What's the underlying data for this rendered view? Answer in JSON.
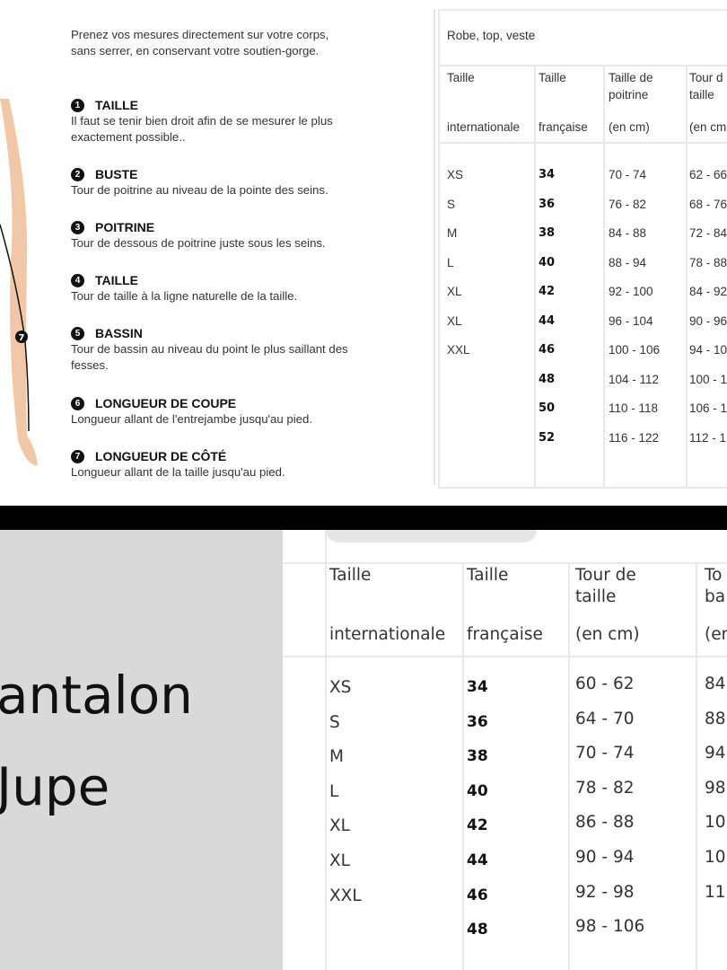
{
  "guide": {
    "intro": [
      "Prenez vos mesures directement sur votre corps,",
      "sans serrer, en conservant votre soutien-gorge."
    ],
    "figure_marker": "7",
    "items": [
      {
        "num": "1",
        "title": "TAILLE",
        "text": [
          "Il faut se tenir bien droit afin de se mesurer le plus",
          "exactement possible.."
        ]
      },
      {
        "num": "2",
        "title": "BUSTE",
        "text": [
          "Tour de poitrine au niveau de la pointe des seins."
        ]
      },
      {
        "num": "3",
        "title": "POITRINE",
        "text": [
          "Tour de dessous de poitrine juste sous les seins."
        ]
      },
      {
        "num": "4",
        "title": "TAILLE",
        "text": [
          "Tour de taille à la ligne naturelle de la taille."
        ]
      },
      {
        "num": "5",
        "title": "BASSIN",
        "text": [
          "Tour de bassin au niveau du point le plus saillant des",
          "fesses."
        ]
      },
      {
        "num": "6",
        "title": "LONGUEUR DE COUPE",
        "text": [
          "Longueur allant de l'entrejambe jusqu'au pied."
        ]
      },
      {
        "num": "7",
        "title": "LONGUEUR DE CÔTÉ",
        "text": [
          "Longueur allant de la taille jusqu'au pied."
        ]
      }
    ]
  },
  "table_top": {
    "title": "Robe, top, veste",
    "headers": [
      [
        "Taille",
        "",
        "internationale"
      ],
      [
        "Taille",
        "",
        "française"
      ],
      [
        "Taille de",
        "poitrine",
        "(en cm)"
      ],
      [
        "Tour d",
        "taille",
        "(en cm"
      ]
    ],
    "rows": [
      [
        "XS",
        "34",
        "70 - 74",
        "62 - 66"
      ],
      [
        "S",
        "36",
        "76 - 82",
        "68 - 76"
      ],
      [
        "M",
        "38",
        "84 - 88",
        "72 - 84"
      ],
      [
        "L",
        "40",
        "88 - 94",
        "78 - 88"
      ],
      [
        "XL",
        "42",
        "92 - 100",
        "84 - 92"
      ],
      [
        "XL",
        "44",
        "96 - 104",
        "90 - 96"
      ],
      [
        "XXL",
        "46",
        "100 - 106",
        "94 - 10"
      ],
      [
        "",
        "48",
        "104 - 112",
        "100 - 1"
      ],
      [
        "",
        "50",
        "110 - 118",
        "106 - 1"
      ],
      [
        "",
        "52",
        "116 - 122",
        "112 - 1"
      ]
    ]
  },
  "bottom_left": {
    "line1": "antalon",
    "line2": "Jupe"
  },
  "table_bottom": {
    "headers": [
      [
        "Taille",
        "",
        "internationale"
      ],
      [
        "Taille",
        "",
        "française"
      ],
      [
        "Tour de",
        "taille",
        "(en cm)"
      ],
      [
        "To",
        "ba",
        "(er"
      ]
    ],
    "rows": [
      [
        "XS",
        "34",
        "60 - 62",
        "84"
      ],
      [
        "S",
        "36",
        "64 - 70",
        "88"
      ],
      [
        "M",
        "38",
        "70 - 74",
        "94"
      ],
      [
        "L",
        "40",
        "78 - 82",
        "98"
      ],
      [
        "XL",
        "42",
        "86 - 88",
        "10"
      ],
      [
        "XL",
        "44",
        "90 - 94",
        "10"
      ],
      [
        "XXL",
        "46",
        "92 - 98",
        "11"
      ],
      [
        "",
        "48",
        "98 - 106",
        ""
      ]
    ]
  }
}
